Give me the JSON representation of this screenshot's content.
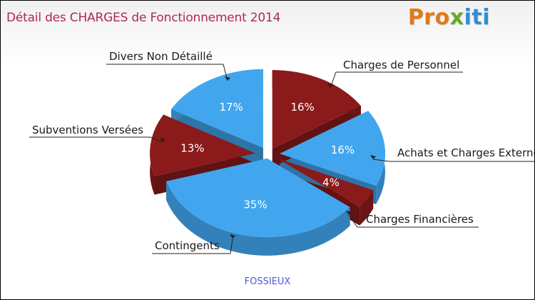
{
  "chart_data": {
    "type": "pie",
    "title": "Détail des CHARGES de Fonctionnement 2014",
    "subtitle": "FOSSIEUX",
    "slices": [
      {
        "label": "Charges de Personnel",
        "value": 16,
        "display": "16%",
        "color": "#8b1a1a"
      },
      {
        "label": "Achats et Charges Externes",
        "value": 16,
        "display": "16%",
        "color": "#42a6ee"
      },
      {
        "label": "Charges Financières",
        "value": 4,
        "display": "4%",
        "color": "#8b1a1a"
      },
      {
        "label": "Contingents",
        "value": 35,
        "display": "35%",
        "color": "#42a6ee"
      },
      {
        "label": "Subventions Versées",
        "value": 13,
        "display": "13%",
        "color": "#8b1a1a"
      },
      {
        "label": "Divers Non Détaillé",
        "value": 17,
        "display": "17%",
        "color": "#42a6ee"
      }
    ]
  },
  "brand": {
    "logo_text": "Proxiti"
  },
  "colors": {
    "title": "#b02a4c",
    "footer": "#4f5ad1",
    "red": "#8b1a1a",
    "blue": "#42a6ee"
  }
}
